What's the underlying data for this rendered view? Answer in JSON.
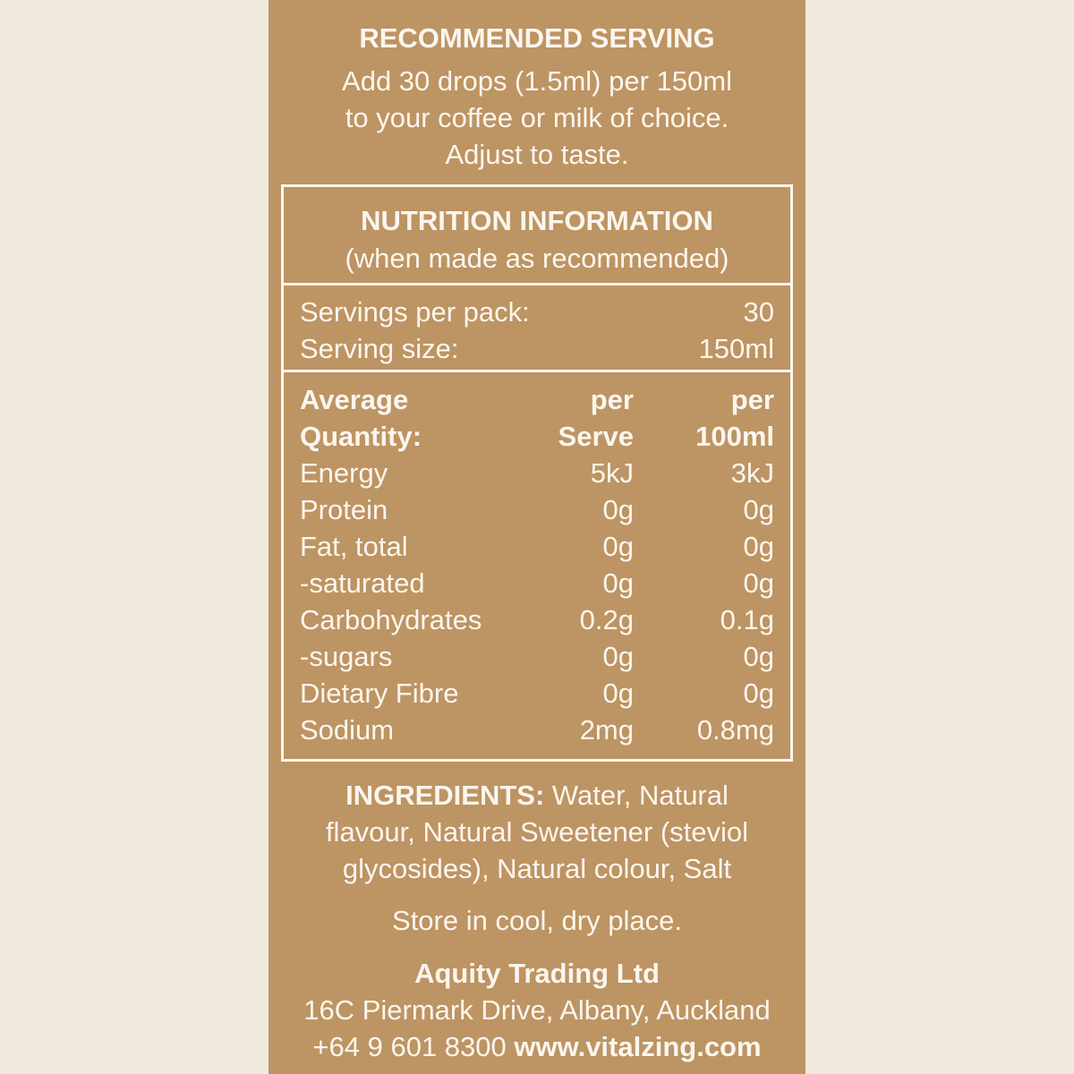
{
  "serving": {
    "title": "RECOMMENDED SERVING",
    "lines": [
      "Add 30 drops (1.5ml) per 150ml",
      "to your coffee or milk of choice.",
      "Adjust to taste."
    ]
  },
  "nutrition": {
    "title": "NUTRITION INFORMATION",
    "subtitle": "(when made as recommended)",
    "servings_label": "Servings per pack:",
    "servings_value": "30",
    "size_label": "Serving size:",
    "size_value": "150ml",
    "header": [
      [
        "Average",
        "per",
        "per"
      ],
      [
        "Quantity:",
        "Serve",
        "100ml"
      ]
    ],
    "rows": [
      [
        "Energy",
        "5kJ",
        "3kJ"
      ],
      [
        "Protein",
        "0g",
        "0g"
      ],
      [
        "Fat, total",
        "0g",
        "0g"
      ],
      [
        "-saturated",
        "0g",
        "0g"
      ],
      [
        "Carbohydrates",
        "0.2g",
        "0.1g"
      ],
      [
        "-sugars",
        "0g",
        "0g"
      ],
      [
        "Dietary Fibre",
        "0g",
        "0g"
      ],
      [
        "Sodium",
        "2mg",
        "0.8mg"
      ]
    ]
  },
  "ingredients": {
    "label": "INGREDIENTS:",
    "lines": [
      " Water, Natural",
      "flavour, Natural Sweetener (steviol",
      "glycosides), Natural colour, Salt"
    ]
  },
  "storage": "Store in cool, dry place.",
  "company": {
    "name": "Aquity Trading Ltd",
    "address": "16C Piermark Drive, Albany, Auckland",
    "phone": "+64 9 601 8300 ",
    "website": "www.vitalzing.com"
  },
  "colors": {
    "background": "#f0e9dd",
    "panel": "#bd9463",
    "text": "#fbf6ee"
  }
}
